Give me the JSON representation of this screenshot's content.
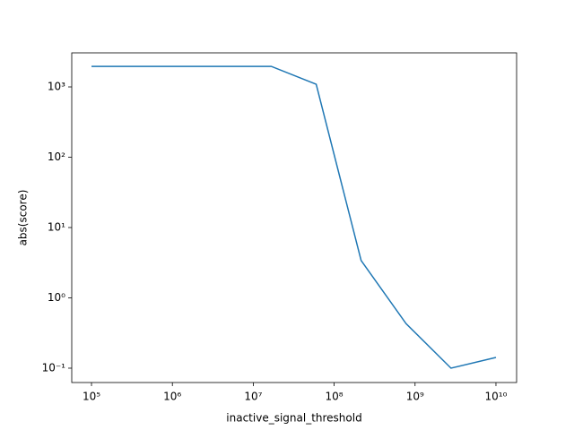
{
  "chart_data": {
    "type": "line",
    "xlabel": "inactive_signal_threshold",
    "ylabel": "abs(score)",
    "xscale": "log",
    "yscale": "log",
    "x": [
      100000,
      359381,
      1291550,
      4641589,
      16681005,
      59948425,
      215443469,
      774263683,
      2782559402,
      10000000000
    ],
    "series": [
      {
        "color": "#1f77b4",
        "values": [
          1960,
          1960,
          1960,
          1960,
          1960,
          1090,
          3.4,
          0.43,
          0.1,
          0.142
        ]
      }
    ],
    "xlim": [
      57000,
      18000000000
    ],
    "ylim": [
      0.0625,
      3050
    ],
    "xticks": [
      {
        "value": 100000,
        "label": "10⁵"
      },
      {
        "value": 1000000,
        "label": "10⁶"
      },
      {
        "value": 10000000,
        "label": "10⁷"
      },
      {
        "value": 100000000,
        "label": "10⁸"
      },
      {
        "value": 1000000000,
        "label": "10⁹"
      },
      {
        "value": 10000000000,
        "label": "10¹⁰"
      }
    ],
    "yticks": [
      {
        "value": 0.1,
        "label": "10⁻¹"
      },
      {
        "value": 1,
        "label": "10⁰"
      },
      {
        "value": 10,
        "label": "10¹"
      },
      {
        "value": 100,
        "label": "10²"
      },
      {
        "value": 1000,
        "label": "10³"
      }
    ]
  }
}
